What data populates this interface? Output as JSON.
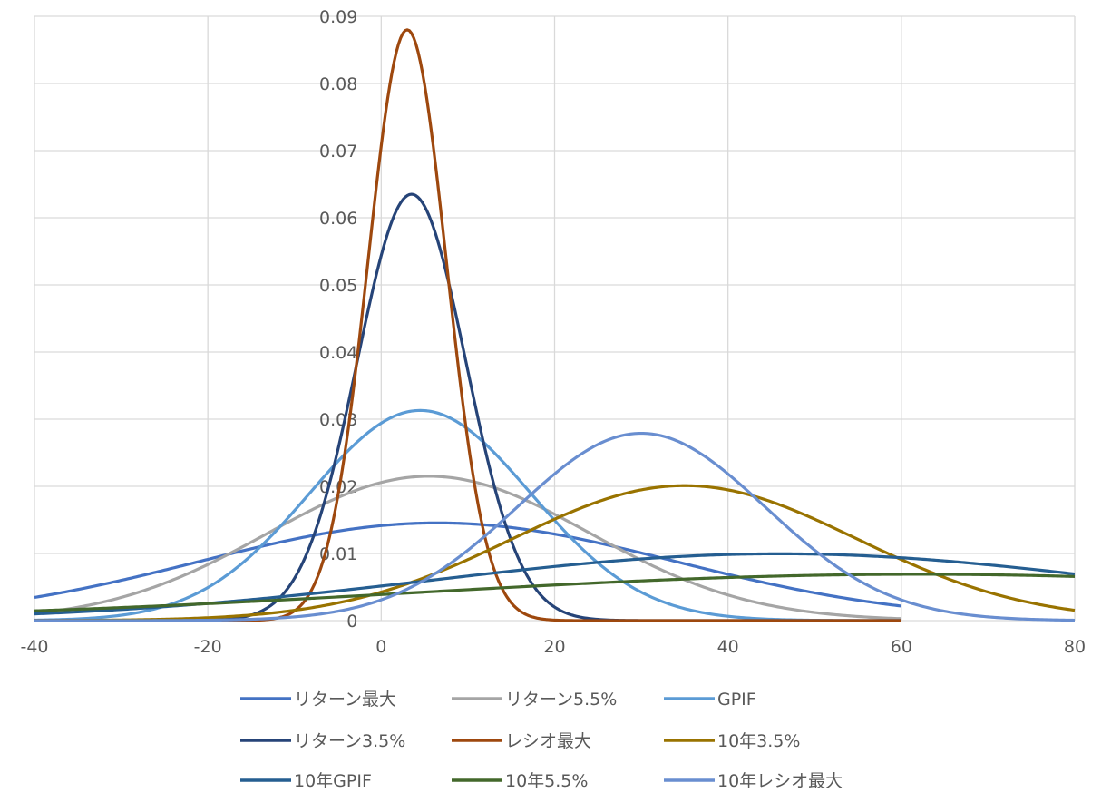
{
  "chart_data": {
    "type": "line",
    "title": "",
    "xlabel": "",
    "ylabel": "",
    "xlim": [
      -40,
      80
    ],
    "ylim": [
      0,
      0.09
    ],
    "x_ticks": [
      -40,
      -20,
      0,
      20,
      40,
      60,
      80
    ],
    "x_tick_labels": [
      "-40",
      "-20",
      "0",
      "20",
      "40",
      "60",
      "80"
    ],
    "y_ticks": [
      0,
      0.01,
      0.02,
      0.03,
      0.04,
      0.05,
      0.06,
      0.07,
      0.08,
      0.09
    ],
    "y_tick_labels": [
      "0",
      "0.01",
      "0.02",
      "0.03",
      "0.04",
      "0.05",
      "0.06",
      "0.07",
      "0.08",
      "0.09"
    ],
    "grid": true,
    "legend_position": "bottom",
    "series": [
      {
        "name": "リターン最大",
        "color": "#4472C4",
        "x_range": [
          -40,
          60
        ],
        "mean": 6.5,
        "peak": 0.01455
      },
      {
        "name": "リターン5.5%",
        "color": "#A5A5A5",
        "x_range": [
          -40,
          60
        ],
        "mean": 5.5,
        "peak": 0.0215
      },
      {
        "name": "GPIF",
        "color": "#5B9BD5",
        "x_range": [
          -40,
          60
        ],
        "mean": 4.5,
        "peak": 0.0313
      },
      {
        "name": "リターン3.5%",
        "color": "#264478",
        "x_range": [
          -40,
          60
        ],
        "mean": 3.5,
        "peak": 0.0635
      },
      {
        "name": "レシオ最大",
        "color": "#9E480E",
        "x_range": [
          -40,
          60
        ],
        "mean": 3.0,
        "peak": 0.088
      },
      {
        "name": "10年3.5%",
        "color": "#997300",
        "x_range": [
          -40,
          80
        ],
        "mean": 35,
        "peak": 0.0201
      },
      {
        "name": "10年GPIF",
        "color": "#255E91",
        "x_range": [
          -40,
          80
        ],
        "mean": 46,
        "peak": 0.00995
      },
      {
        "name": "10年5.5%",
        "color": "#43682B",
        "x_range": [
          -40,
          80
        ],
        "mean": 62,
        "peak": 0.0069
      },
      {
        "name": "10年レシオ最大",
        "color": "#698ED0",
        "x_range": [
          -40,
          80
        ],
        "mean": 30,
        "peak": 0.0279
      }
    ]
  }
}
